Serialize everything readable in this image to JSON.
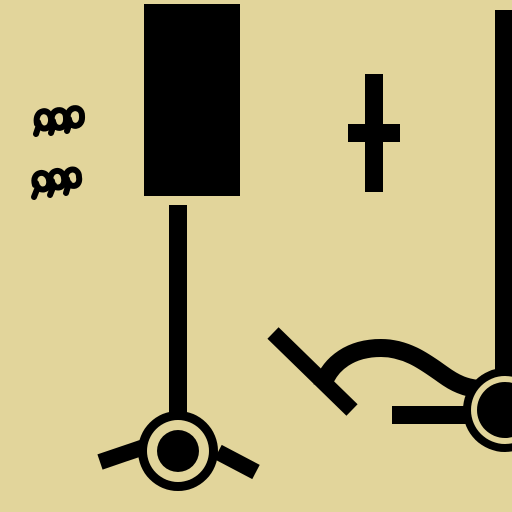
{
  "scene": {
    "background_color": "#e2d59b",
    "ink_color": "#000000",
    "icons": [
      "swirl-glyphs-icon",
      "black-block-icon",
      "cross-icon",
      "lever-icon",
      "circle-node-icon",
      "right-node-icon"
    ]
  }
}
